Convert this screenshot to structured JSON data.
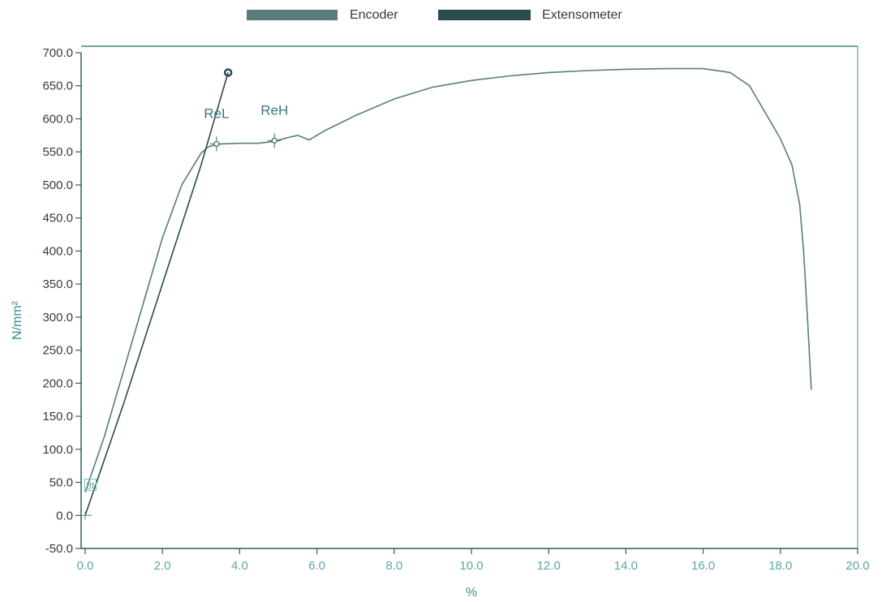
{
  "chart_data": {
    "type": "line",
    "xlabel": "%",
    "ylabel": "N/mm²",
    "xlim": [
      0,
      20
    ],
    "ylim": [
      -50,
      700
    ],
    "x_ticks": [
      "0.0",
      "2.0",
      "4.0",
      "6.0",
      "8.0",
      "10.0",
      "12.0",
      "14.0",
      "16.0",
      "18.0",
      "20.0"
    ],
    "y_ticks": [
      "700.0",
      "650.0",
      "600.0",
      "550.0",
      "500.0",
      "450.0",
      "400.0",
      "350.0",
      "300.0",
      "250.0",
      "200.0",
      "150.0",
      "100.0",
      "50.0",
      "0.0",
      "-50.0"
    ],
    "grid": false,
    "legend_position": "top-center",
    "colors": {
      "encoder": "#5a7c7c",
      "extensometer": "#2b4a4e",
      "axis": "#2f5f60",
      "frame": "#3d8a8a"
    },
    "series": [
      {
        "name": "Encoder",
        "x": [
          0.0,
          0.5,
          1.0,
          1.5,
          2.0,
          2.5,
          3.0,
          3.2,
          3.5,
          4.0,
          4.5,
          4.9,
          5.2,
          5.5,
          5.8,
          6.2,
          7.0,
          8.0,
          9.0,
          10.0,
          11.0,
          12.0,
          13.0,
          14.0,
          15.0,
          16.0,
          16.7,
          17.2,
          17.6,
          18.0,
          18.3,
          18.5,
          18.6,
          18.7,
          18.8
        ],
        "y": [
          35,
          120,
          220,
          320,
          420,
          500,
          548,
          558,
          562,
          563,
          563,
          566,
          571,
          575,
          568,
          582,
          605,
          630,
          648,
          658,
          665,
          670,
          673,
          675,
          676,
          676,
          670,
          650,
          610,
          570,
          530,
          470,
          400,
          300,
          190
        ]
      },
      {
        "name": "Extensometer",
        "x": [
          0.0,
          1.0,
          2.0,
          3.0,
          3.7
        ],
        "y": [
          0,
          170,
          350,
          530,
          670
        ]
      }
    ],
    "annotations": [
      {
        "label": "ReL",
        "x": 3.4,
        "y": 562
      },
      {
        "label": "ReH",
        "x": 4.9,
        "y": 567
      }
    ],
    "markers": [
      {
        "label": "3t",
        "x": 0.05,
        "y": 45
      }
    ]
  }
}
